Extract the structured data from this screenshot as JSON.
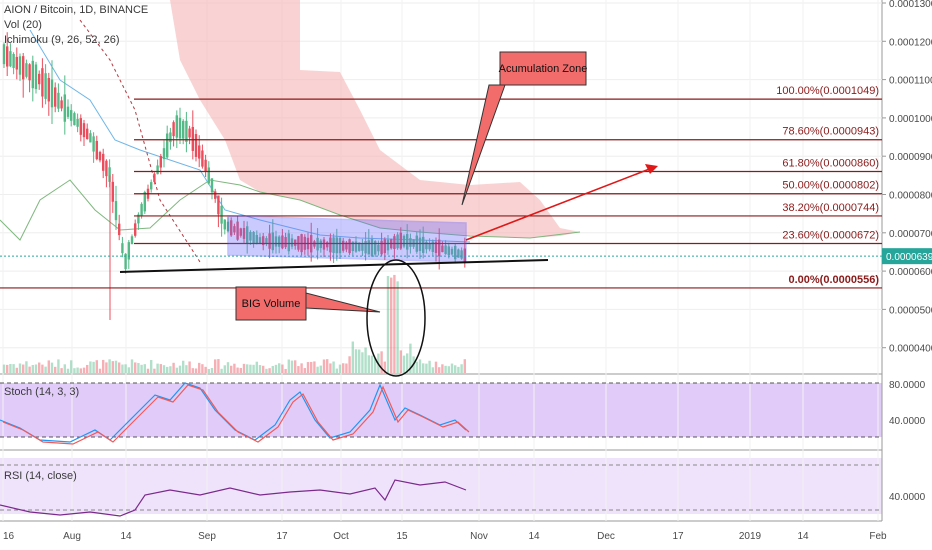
{
  "header": {
    "symbol_line": "AION / Bitcoin, 1D, BINANCE",
    "vol_line": "Vol (20)",
    "ichimoku_line": "Ichimoku (9, 26, 52, 26)"
  },
  "panels": {
    "stoch_label": "Stoch (14, 3, 3)",
    "rsi_label": "RSI (14, close)"
  },
  "chart_data": {
    "type": "candlestick",
    "price_axis": {
      "ticks": [
        "0.0001300",
        "0.0001200",
        "0.0001100",
        "0.0001000",
        "0.0000900",
        "0.0000800",
        "0.0000700",
        "0.0000600",
        "0.0000500",
        "0.0000400"
      ],
      "current_price": "0.0000639"
    },
    "date_axis": [
      "16",
      "Aug",
      "14",
      "Sep",
      "17",
      "Oct",
      "15",
      "Nov",
      "14",
      "Dec",
      "17",
      "2019",
      "14",
      "Feb"
    ],
    "fibonacci": [
      {
        "label": "100.00%(0.0001049)",
        "value": 0.0001049
      },
      {
        "label": "78.60%(0.0000943)",
        "value": 9.43e-05
      },
      {
        "label": "61.80%(0.0000860)",
        "value": 8.6e-05
      },
      {
        "label": "50.00%(0.0000802)",
        "value": 8.02e-05
      },
      {
        "label": "38.20%(0.0000744)",
        "value": 7.44e-05
      },
      {
        "label": "23.60%(0.0000672)",
        "value": 6.72e-05
      },
      {
        "label": "0.00%(0.0000556)",
        "value": 5.56e-05
      }
    ],
    "annotations": {
      "accumulation": "Acumulation Zone",
      "volume": "BIG Volume"
    },
    "stoch_axis": [
      "80.0000",
      "40.0000"
    ],
    "rsi_axis": [
      "40.0000"
    ],
    "colors": {
      "up": "#53b987",
      "down": "#eb4d5c",
      "fib": "#8b1a1a",
      "cloud": "#f5b5b5",
      "channel": "#4f4fff",
      "stoch_bg": "#e1ccf9",
      "rsi_bg": "#efe3fc"
    }
  }
}
